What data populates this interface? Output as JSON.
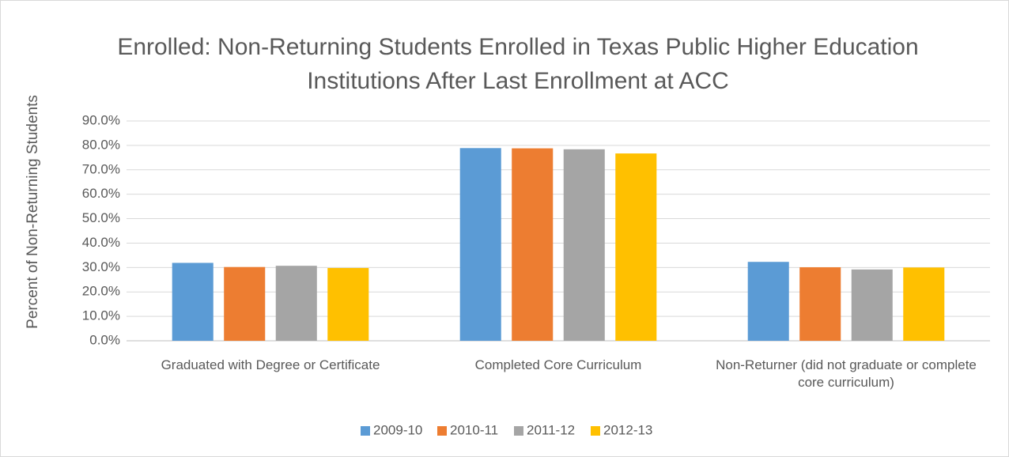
{
  "chart_data": {
    "type": "bar",
    "title": "Enrolled: Non-Returning Students Enrolled in Texas Public Higher Education Institutions After Last Enrollment at ACC",
    "y_label": "Percent of Non-Returning Students",
    "categories": [
      "Graduated with Degree or Certificate",
      "Completed Core Curriculum",
      "Non-Returner (did not graduate or complete core curriculum)"
    ],
    "series": [
      {
        "name": "2009-10",
        "color": "#5b9bd5",
        "values": [
          31.9,
          78.9,
          32.3
        ]
      },
      {
        "name": "2010-11",
        "color": "#ed7d31",
        "values": [
          30.2,
          78.8,
          30.1
        ]
      },
      {
        "name": "2011-12",
        "color": "#a5a5a5",
        "values": [
          30.7,
          78.4,
          29.2
        ]
      },
      {
        "name": "2012-13",
        "color": "#ffc000",
        "values": [
          29.8,
          76.7,
          30.0
        ]
      }
    ],
    "ylim": [
      0,
      90
    ],
    "yticks": [
      {
        "value": 0,
        "label": "0.0%"
      },
      {
        "value": 10,
        "label": "10.0%"
      },
      {
        "value": 20,
        "label": "20.0%"
      },
      {
        "value": 30,
        "label": "30.0%"
      },
      {
        "value": 40,
        "label": "40.0%"
      },
      {
        "value": 50,
        "label": "50.0%"
      },
      {
        "value": 60,
        "label": "60.0%"
      },
      {
        "value": 70,
        "label": "70.0%"
      },
      {
        "value": 80,
        "label": "80.0%"
      },
      {
        "value": 90,
        "label": "90.0%"
      }
    ],
    "grid": true,
    "legend": "bottom"
  }
}
